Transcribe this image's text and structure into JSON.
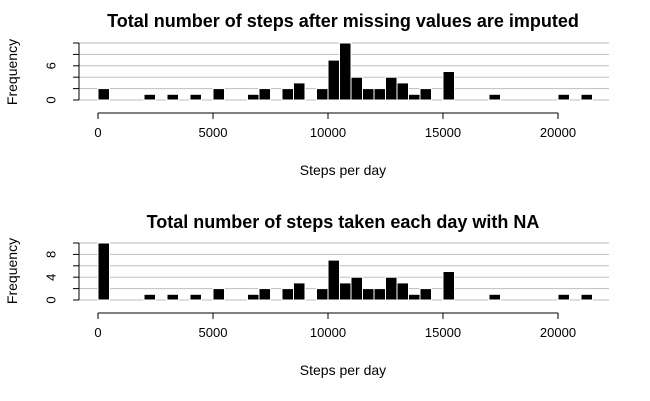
{
  "chart_data": [
    {
      "type": "bar",
      "title": "Total number of steps after missing values are imputed",
      "xlabel": "Steps per day",
      "ylabel": "Frequency",
      "xlim": [
        -1000,
        22000
      ],
      "ylim": [
        0,
        10
      ],
      "x_ticks": [
        0,
        5000,
        10000,
        15000,
        20000
      ],
      "x_tick_labels": [
        "0",
        "5000",
        "10000",
        "15000",
        "20000"
      ],
      "y_ticks": [
        0,
        2,
        4,
        6,
        8,
        10
      ],
      "y_tick_labels": [
        "0",
        "6"
      ],
      "y_tick_label_values": [
        0,
        6
      ],
      "grid": true,
      "bin_width": 500,
      "bins": [
        {
          "start": 0,
          "value": 2
        },
        {
          "start": 2000,
          "value": 1
        },
        {
          "start": 3000,
          "value": 1
        },
        {
          "start": 4000,
          "value": 1
        },
        {
          "start": 5000,
          "value": 2
        },
        {
          "start": 6500,
          "value": 1
        },
        {
          "start": 7000,
          "value": 2
        },
        {
          "start": 8000,
          "value": 2
        },
        {
          "start": 8500,
          "value": 3
        },
        {
          "start": 9500,
          "value": 2
        },
        {
          "start": 10000,
          "value": 7
        },
        {
          "start": 10500,
          "value": 10
        },
        {
          "start": 11000,
          "value": 4
        },
        {
          "start": 11500,
          "value": 2
        },
        {
          "start": 12000,
          "value": 2
        },
        {
          "start": 12500,
          "value": 4
        },
        {
          "start": 13000,
          "value": 3
        },
        {
          "start": 13500,
          "value": 1
        },
        {
          "start": 14000,
          "value": 2
        },
        {
          "start": 15000,
          "value": 5
        },
        {
          "start": 17000,
          "value": 1
        },
        {
          "start": 20000,
          "value": 1
        },
        {
          "start": 21000,
          "value": 1
        }
      ]
    },
    {
      "type": "bar",
      "title": "Total number of steps taken each day with NA",
      "xlabel": "Steps per day",
      "ylabel": "Frequency",
      "xlim": [
        -1000,
        22000
      ],
      "ylim": [
        0,
        10
      ],
      "x_ticks": [
        0,
        5000,
        10000,
        15000,
        20000
      ],
      "x_tick_labels": [
        "0",
        "5000",
        "10000",
        "15000",
        "20000"
      ],
      "y_ticks": [
        0,
        2,
        4,
        6,
        8,
        10
      ],
      "y_tick_labels": [
        "0",
        "4",
        "8"
      ],
      "y_tick_label_values": [
        0,
        4,
        8
      ],
      "grid": true,
      "bin_width": 500,
      "bins": [
        {
          "start": 0,
          "value": 10
        },
        {
          "start": 2000,
          "value": 1
        },
        {
          "start": 3000,
          "value": 1
        },
        {
          "start": 4000,
          "value": 1
        },
        {
          "start": 5000,
          "value": 2
        },
        {
          "start": 6500,
          "value": 1
        },
        {
          "start": 7000,
          "value": 2
        },
        {
          "start": 8000,
          "value": 2
        },
        {
          "start": 8500,
          "value": 3
        },
        {
          "start": 9500,
          "value": 2
        },
        {
          "start": 10000,
          "value": 7
        },
        {
          "start": 10500,
          "value": 3
        },
        {
          "start": 11000,
          "value": 4
        },
        {
          "start": 11500,
          "value": 2
        },
        {
          "start": 12000,
          "value": 2
        },
        {
          "start": 12500,
          "value": 4
        },
        {
          "start": 13000,
          "value": 3
        },
        {
          "start": 13500,
          "value": 1
        },
        {
          "start": 14000,
          "value": 2
        },
        {
          "start": 15000,
          "value": 5
        },
        {
          "start": 17000,
          "value": 1
        },
        {
          "start": 20000,
          "value": 1
        },
        {
          "start": 21000,
          "value": 1
        }
      ]
    }
  ],
  "colors": {
    "bar_fill": "#000000",
    "bar_border": "#ffffff",
    "grid": "#bebebe",
    "axis": "#000000"
  }
}
